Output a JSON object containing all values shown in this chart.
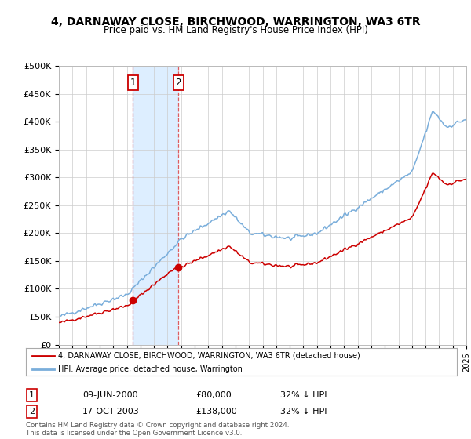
{
  "title": "4, DARNAWAY CLOSE, BIRCHWOOD, WARRINGTON, WA3 6TR",
  "subtitle": "Price paid vs. HM Land Registry's House Price Index (HPI)",
  "ylim": [
    0,
    500000
  ],
  "yticks": [
    0,
    50000,
    100000,
    150000,
    200000,
    250000,
    300000,
    350000,
    400000,
    450000,
    500000
  ],
  "ytick_labels": [
    "£0",
    "£50K",
    "£100K",
    "£150K",
    "£200K",
    "£250K",
    "£300K",
    "£350K",
    "£400K",
    "£450K",
    "£500K"
  ],
  "hpi_color": "#7aaedb",
  "price_color": "#cc0000",
  "sale1_year": 2000.46,
  "sale2_year": 2003.8,
  "sale1_price": 80000,
  "sale2_price": 138000,
  "sale1_label": "1",
  "sale2_label": "2",
  "sale1_date": "09-JUN-2000",
  "sale1_price_str": "£80,000",
  "sale1_hpi": "32% ↓ HPI",
  "sale2_date": "17-OCT-2003",
  "sale2_price_str": "£138,000",
  "sale2_hpi": "32% ↓ HPI",
  "legend_line1": "4, DARNAWAY CLOSE, BIRCHWOOD, WARRINGTON, WA3 6TR (detached house)",
  "legend_line2": "HPI: Average price, detached house, Warrington",
  "footer": "Contains HM Land Registry data © Crown copyright and database right 2024.\nThis data is licensed under the Open Government Licence v3.0.",
  "x_start_year": 1995,
  "x_end_year": 2025,
  "background_color": "#ffffff",
  "grid_color": "#cccccc",
  "span_color": "#ddeeff"
}
